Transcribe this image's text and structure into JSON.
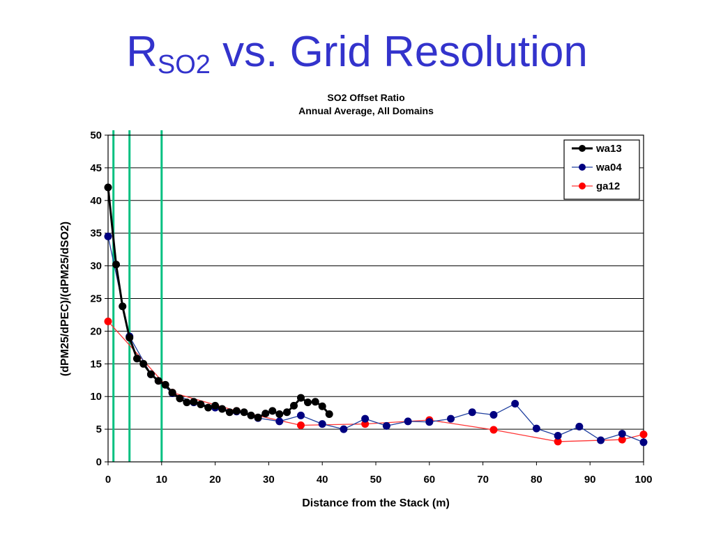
{
  "slide": {
    "title_main": "R",
    "title_sub": "SO2",
    "title_rest": " vs. Grid Resolution"
  },
  "chart_data": {
    "type": "line",
    "title": "SO2 Offset Ratio",
    "subtitle": "Annual Average, All Domains",
    "xlabel": "Distance from the Stack (m)",
    "ylabel": "(dPM25/dPEC)/(dPM25/dSO2)",
    "xlim": [
      0,
      100
    ],
    "ylim": [
      0,
      50
    ],
    "xticks": [
      0,
      10,
      20,
      30,
      40,
      50,
      60,
      70,
      80,
      90,
      100
    ],
    "yticks": [
      0,
      5,
      10,
      15,
      20,
      25,
      30,
      35,
      40,
      45,
      50
    ],
    "grid": "horizontal",
    "legend_position": "top-right",
    "vertical_lines": [
      {
        "x": 1,
        "color": "#00c080"
      },
      {
        "x": 4,
        "color": "#00c080"
      },
      {
        "x": 10,
        "color": "#00c080"
      }
    ],
    "series": [
      {
        "name": "wa13",
        "color": "#000000",
        "line_width": 3,
        "marker_color": "#000000",
        "points": [
          [
            0,
            42
          ],
          [
            1.5,
            30.2
          ],
          [
            2.7,
            23.8
          ],
          [
            4,
            19
          ],
          [
            5.4,
            15.8
          ],
          [
            6.6,
            15
          ],
          [
            8,
            13.4
          ],
          [
            9.4,
            12.4
          ],
          [
            10.7,
            11.8
          ],
          [
            12,
            10.6
          ],
          [
            13.4,
            9.7
          ],
          [
            14.7,
            9.1
          ],
          [
            16,
            9.2
          ],
          [
            17.3,
            8.8
          ],
          [
            18.7,
            8.3
          ],
          [
            20,
            8.6
          ],
          [
            21.3,
            8.1
          ],
          [
            22.7,
            7.6
          ],
          [
            24,
            7.8
          ],
          [
            25.4,
            7.6
          ],
          [
            26.7,
            7.1
          ],
          [
            28,
            6.8
          ],
          [
            29.4,
            7.4
          ],
          [
            30.7,
            7.8
          ],
          [
            32,
            7.3
          ],
          [
            33.4,
            7.6
          ],
          [
            34.7,
            8.6
          ],
          [
            36,
            9.8
          ],
          [
            37.3,
            9.1
          ],
          [
            38.7,
            9.2
          ],
          [
            40,
            8.5
          ],
          [
            41.3,
            7.3
          ]
        ]
      },
      {
        "name": "wa04",
        "color": "#1f3f9f",
        "line_width": 1.3,
        "marker_color": "#000080",
        "points": [
          [
            0,
            34.5
          ],
          [
            4,
            19.2
          ],
          [
            8,
            13.4
          ],
          [
            12,
            10.5
          ],
          [
            16,
            9.1
          ],
          [
            20,
            8.3
          ],
          [
            24,
            7.7
          ],
          [
            28,
            6.7
          ],
          [
            32,
            6.2
          ],
          [
            36,
            7.1
          ],
          [
            40,
            5.8
          ],
          [
            44,
            5
          ],
          [
            48,
            6.6
          ],
          [
            52,
            5.5
          ],
          [
            56,
            6.2
          ],
          [
            60,
            6.1
          ],
          [
            64,
            6.6
          ],
          [
            68,
            7.6
          ],
          [
            72,
            7.2
          ],
          [
            76,
            8.9
          ],
          [
            80,
            5.1
          ],
          [
            84,
            4
          ],
          [
            88,
            5.4
          ],
          [
            92,
            3.3
          ],
          [
            96,
            4.3
          ],
          [
            100,
            3
          ]
        ]
      },
      {
        "name": "ga12",
        "color": "#ff3333",
        "line_width": 1.3,
        "marker_color": "#ff0000",
        "points": [
          [
            0,
            21.5
          ],
          [
            12,
            10.6
          ],
          [
            24,
            7.8
          ],
          [
            36,
            5.6
          ],
          [
            48,
            5.8
          ],
          [
            60,
            6.4
          ],
          [
            72,
            4.9
          ],
          [
            84,
            3.1
          ],
          [
            96,
            3.4
          ],
          [
            100,
            4.2
          ]
        ]
      }
    ]
  }
}
